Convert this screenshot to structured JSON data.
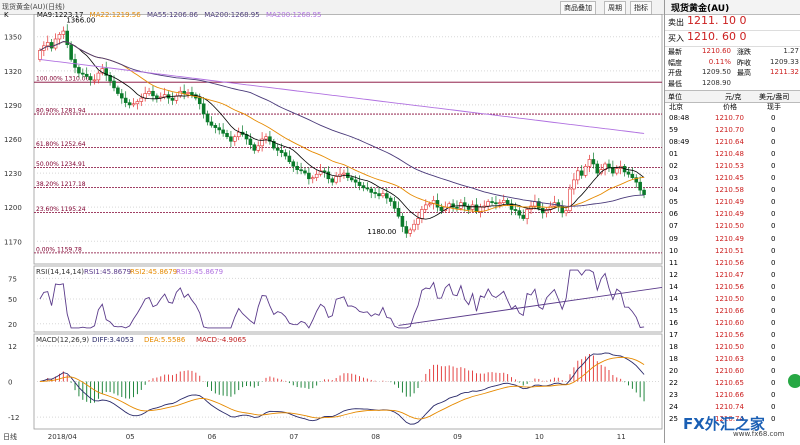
{
  "title": "现货黄金(AU)(日线)",
  "toolbar": {
    "btn1": "商品叠加",
    "btn2": "周期",
    "btn3": "指标"
  },
  "ma_legend": {
    "k": "K",
    "ma9": "MA9:1223.17",
    "ma22": "MA22:1219.56",
    "ma55": "MA55:1206.86",
    "ma200": "MA200:1268.95",
    "ma200b": "MA200:1268.95"
  },
  "colors": {
    "ma9": "#000000",
    "ma22": "#e68a00",
    "ma55": "#4a3a7a",
    "ma200": "#b070e0",
    "up": "#e23030",
    "down": "#0a7a2a",
    "fib": "#800030"
  },
  "chart_data": [
    {
      "type": "candlestick",
      "title": "现货黄金(AU)(日线)",
      "y_ticks": [
        1170,
        1200,
        1230,
        1260,
        1290,
        1320,
        1350
      ],
      "ylim": [
        1150,
        1370
      ],
      "x_labels": [
        "2018/04",
        "05",
        "06",
        "07",
        "08",
        "09",
        "10",
        "11"
      ],
      "annotations": {
        "high": "1366.00",
        "low": "1180.00"
      },
      "fib_levels": [
        {
          "label": "100.00% 1310.00",
          "value": 1310.0
        },
        {
          "label": "80.90% 1281.94",
          "value": 1281.94
        },
        {
          "label": "61.80% 1252.64",
          "value": 1252.64
        },
        {
          "label": "50.00% 1234.91",
          "value": 1234.91
        },
        {
          "label": "38.20% 1217.18",
          "value": 1217.18
        },
        {
          "label": "23.60% 1195.24",
          "value": 1195.24
        },
        {
          "label": "0.00% 1159.78",
          "value": 1159.78
        }
      ],
      "series_closes": [
        1338,
        1342,
        1345,
        1340,
        1348,
        1352,
        1355,
        1343,
        1330,
        1323,
        1318,
        1317,
        1315,
        1312,
        1312,
        1318,
        1322,
        1316,
        1311,
        1305,
        1300,
        1296,
        1292,
        1290,
        1291,
        1293,
        1296,
        1300,
        1302,
        1298,
        1296,
        1297,
        1299,
        1296,
        1294,
        1298,
        1302,
        1300,
        1301,
        1299,
        1296,
        1291,
        1282,
        1275,
        1272,
        1270,
        1268,
        1265,
        1262,
        1258,
        1262,
        1266,
        1264,
        1260,
        1255,
        1250,
        1254,
        1260,
        1262,
        1258,
        1252,
        1250,
        1248,
        1245,
        1240,
        1236,
        1233,
        1232,
        1230,
        1225,
        1226,
        1229,
        1232,
        1231,
        1225,
        1222,
        1227,
        1229,
        1230,
        1226,
        1224,
        1222,
        1219,
        1217,
        1216,
        1213,
        1212,
        1210,
        1212,
        1208,
        1205,
        1199,
        1192,
        1183,
        1177,
        1180,
        1185,
        1190,
        1198,
        1202,
        1203,
        1206,
        1200,
        1197,
        1200,
        1203,
        1200,
        1199,
        1204,
        1201,
        1198,
        1202,
        1196,
        1200,
        1201,
        1205,
        1204,
        1203,
        1204,
        1206,
        1203,
        1198,
        1197,
        1193,
        1190,
        1198,
        1201,
        1205,
        1199,
        1195,
        1198,
        1201,
        1204,
        1201,
        1195,
        1197,
        1216,
        1224,
        1232,
        1228,
        1236,
        1242,
        1238,
        1230,
        1233,
        1238,
        1235,
        1230,
        1234,
        1236,
        1231,
        1229,
        1226,
        1222,
        1215,
        1211
      ],
      "ma_series": [
        {
          "name": "MA9",
          "color": "#000000"
        },
        {
          "name": "MA22",
          "color": "#e68a00"
        },
        {
          "name": "MA55",
          "color": "#4a3a7a"
        },
        {
          "name": "MA200",
          "color": "#b070e0"
        }
      ]
    },
    {
      "type": "line",
      "title": "RSI(14,14,14)",
      "legend": [
        "RSI1:45.8679",
        "RSI2:45.8679",
        "RSI3:45.8679"
      ],
      "y_ticks": [
        20,
        50,
        75
      ],
      "ylim": [
        10,
        90
      ]
    },
    {
      "type": "bar",
      "title": "MACD(12,26,9)",
      "legend": [
        "DIFF:3.4053",
        "DEA:5.5586",
        "MACD:-4.9065"
      ],
      "y_ticks": [
        -12,
        0,
        12
      ],
      "ylim": [
        -16,
        16
      ]
    }
  ],
  "panel": {
    "title": "现货黄金(AU)",
    "sell_label": "卖出",
    "sell_price": "1211. 10 0",
    "buy_label": "买入",
    "buy_price": "1210. 60 0",
    "stats": [
      [
        "最新",
        "1210.60",
        "涨跌",
        "1.27"
      ],
      [
        "幅度",
        "0.11%",
        "昨收",
        "1209.33"
      ],
      [
        "开盘",
        "1209.50",
        "最高",
        "1211.32"
      ],
      [
        "最低",
        "1208.90",
        "",
        ""
      ]
    ],
    "unit_label": "单位",
    "unit1": "元/克",
    "unit2": "美元/盎司",
    "col_time": "北京",
    "col_price": "价格",
    "col_vol": "现手",
    "ticks": [
      [
        "08:48",
        "1210.70",
        "0"
      ],
      [
        "59",
        "1210.70",
        "0"
      ],
      [
        "08:49",
        "1210.64",
        "0"
      ],
      [
        "01",
        "1210.48",
        "0"
      ],
      [
        "02",
        "1210.53",
        "0"
      ],
      [
        "03",
        "1210.45",
        "0"
      ],
      [
        "04",
        "1210.58",
        "0"
      ],
      [
        "05",
        "1210.49",
        "0"
      ],
      [
        "06",
        "1210.49",
        "0"
      ],
      [
        "07",
        "1210.50",
        "0"
      ],
      [
        "09",
        "1210.49",
        "0"
      ],
      [
        "10",
        "1210.51",
        "0"
      ],
      [
        "11",
        "1210.56",
        "0"
      ],
      [
        "12",
        "1210.47",
        "0"
      ],
      [
        "14",
        "1210.56",
        "0"
      ],
      [
        "14",
        "1210.50",
        "0"
      ],
      [
        "15",
        "1210.66",
        "0"
      ],
      [
        "16",
        "1210.60",
        "0"
      ],
      [
        "17",
        "1210.56",
        "0"
      ],
      [
        "18",
        "1210.50",
        "0"
      ],
      [
        "18",
        "1210.63",
        "0"
      ],
      [
        "20",
        "1210.60",
        "0"
      ],
      [
        "22",
        "1210.65",
        "0"
      ],
      [
        "23",
        "1210.66",
        "0"
      ],
      [
        "24",
        "1210.74",
        "0"
      ],
      [
        "25",
        "1210.74",
        "0"
      ]
    ]
  },
  "watermark": {
    "brand_x": "FX",
    "brand_name": "外汇之家",
    "url": "www.fx68.com"
  },
  "footer_tab": "日线"
}
